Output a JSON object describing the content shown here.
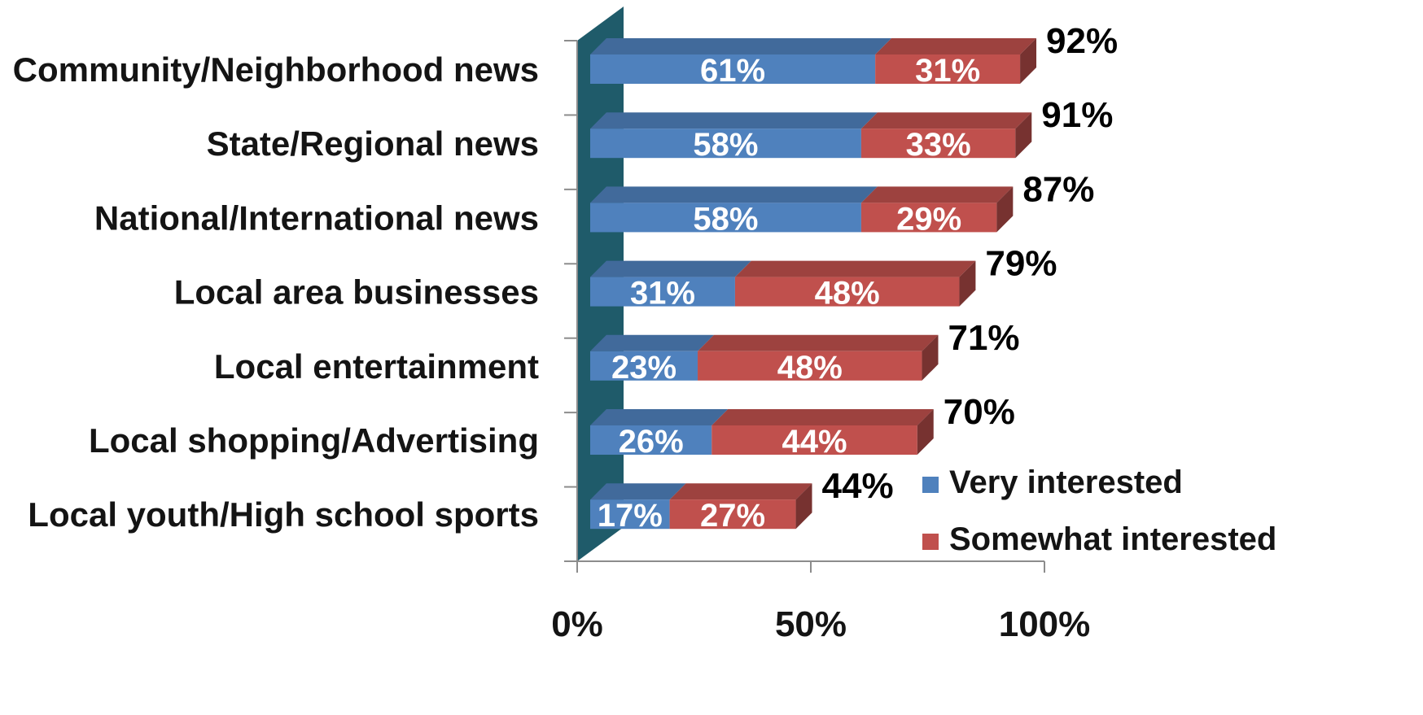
{
  "chart_data": {
    "type": "bar",
    "orientation": "horizontal",
    "stacked": true,
    "style": "3d",
    "categories": [
      "Community/Neighborhood news",
      "State/Regional news",
      "National/International news",
      "Local area businesses",
      "Local entertainment",
      "Local shopping/Advertising",
      "Local youth/High school sports"
    ],
    "series": [
      {
        "name": "Very interested",
        "color": "#4f81bd",
        "values": [
          61,
          58,
          58,
          31,
          23,
          26,
          17
        ],
        "labels": [
          "61%",
          "58%",
          "58%",
          "31%",
          "23%",
          "26%",
          "17%"
        ]
      },
      {
        "name": "Somewhat interested",
        "color": "#c0504d",
        "values": [
          31,
          33,
          29,
          48,
          48,
          44,
          27
        ],
        "labels": [
          "31%",
          "33%",
          "29%",
          "48%",
          "48%",
          "44%",
          "27%"
        ]
      }
    ],
    "totals": [
      "92%",
      "91%",
      "87%",
      "79%",
      "71%",
      "70%",
      "44%"
    ],
    "x_ticks": [
      "0%",
      "50%",
      "100%"
    ],
    "xlim": [
      0,
      100
    ],
    "legend_position": "bottom-right",
    "title": "",
    "xlabel": "",
    "ylabel": "",
    "wall_color": "#1f5b6a"
  }
}
